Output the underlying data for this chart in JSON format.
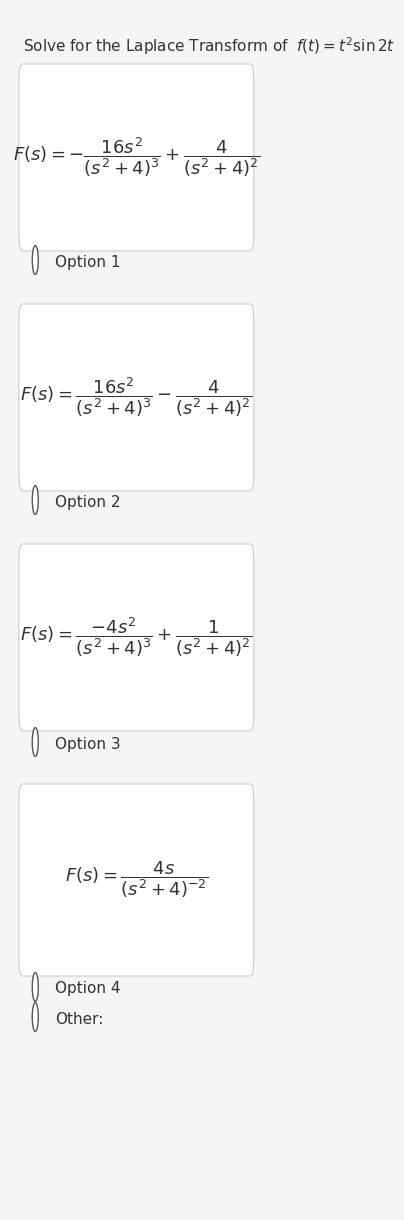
{
  "title": "Solve for the Laplace Transform of  $f(t) = t^2\\sin 2t$",
  "title_fontsize": 11,
  "bg_color": "#f5f5f5",
  "card_color": "#ffffff",
  "text_color": "#333333",
  "option_formulas": [
    "$F(s) = -\\dfrac{16s^2}{(s^2+4)^3} + \\dfrac{4}{(s^2+4)^2}$",
    "$F(s) = \\dfrac{16s^2}{(s^2+4)^3} - \\dfrac{4}{(s^2+4)^2}$",
    "$F(s) = \\dfrac{-4s^2}{(s^2+4)^3} + \\dfrac{1}{(s^2+4)^2}$",
    "$F(s) = \\dfrac{4s}{(s^2+4)^{-2}}$"
  ],
  "option_labels": [
    "Option 1",
    "Option 2",
    "Option 3",
    "Option 4"
  ],
  "other_label": "Other:",
  "formula_fontsize": 13,
  "option_fontsize": 11
}
